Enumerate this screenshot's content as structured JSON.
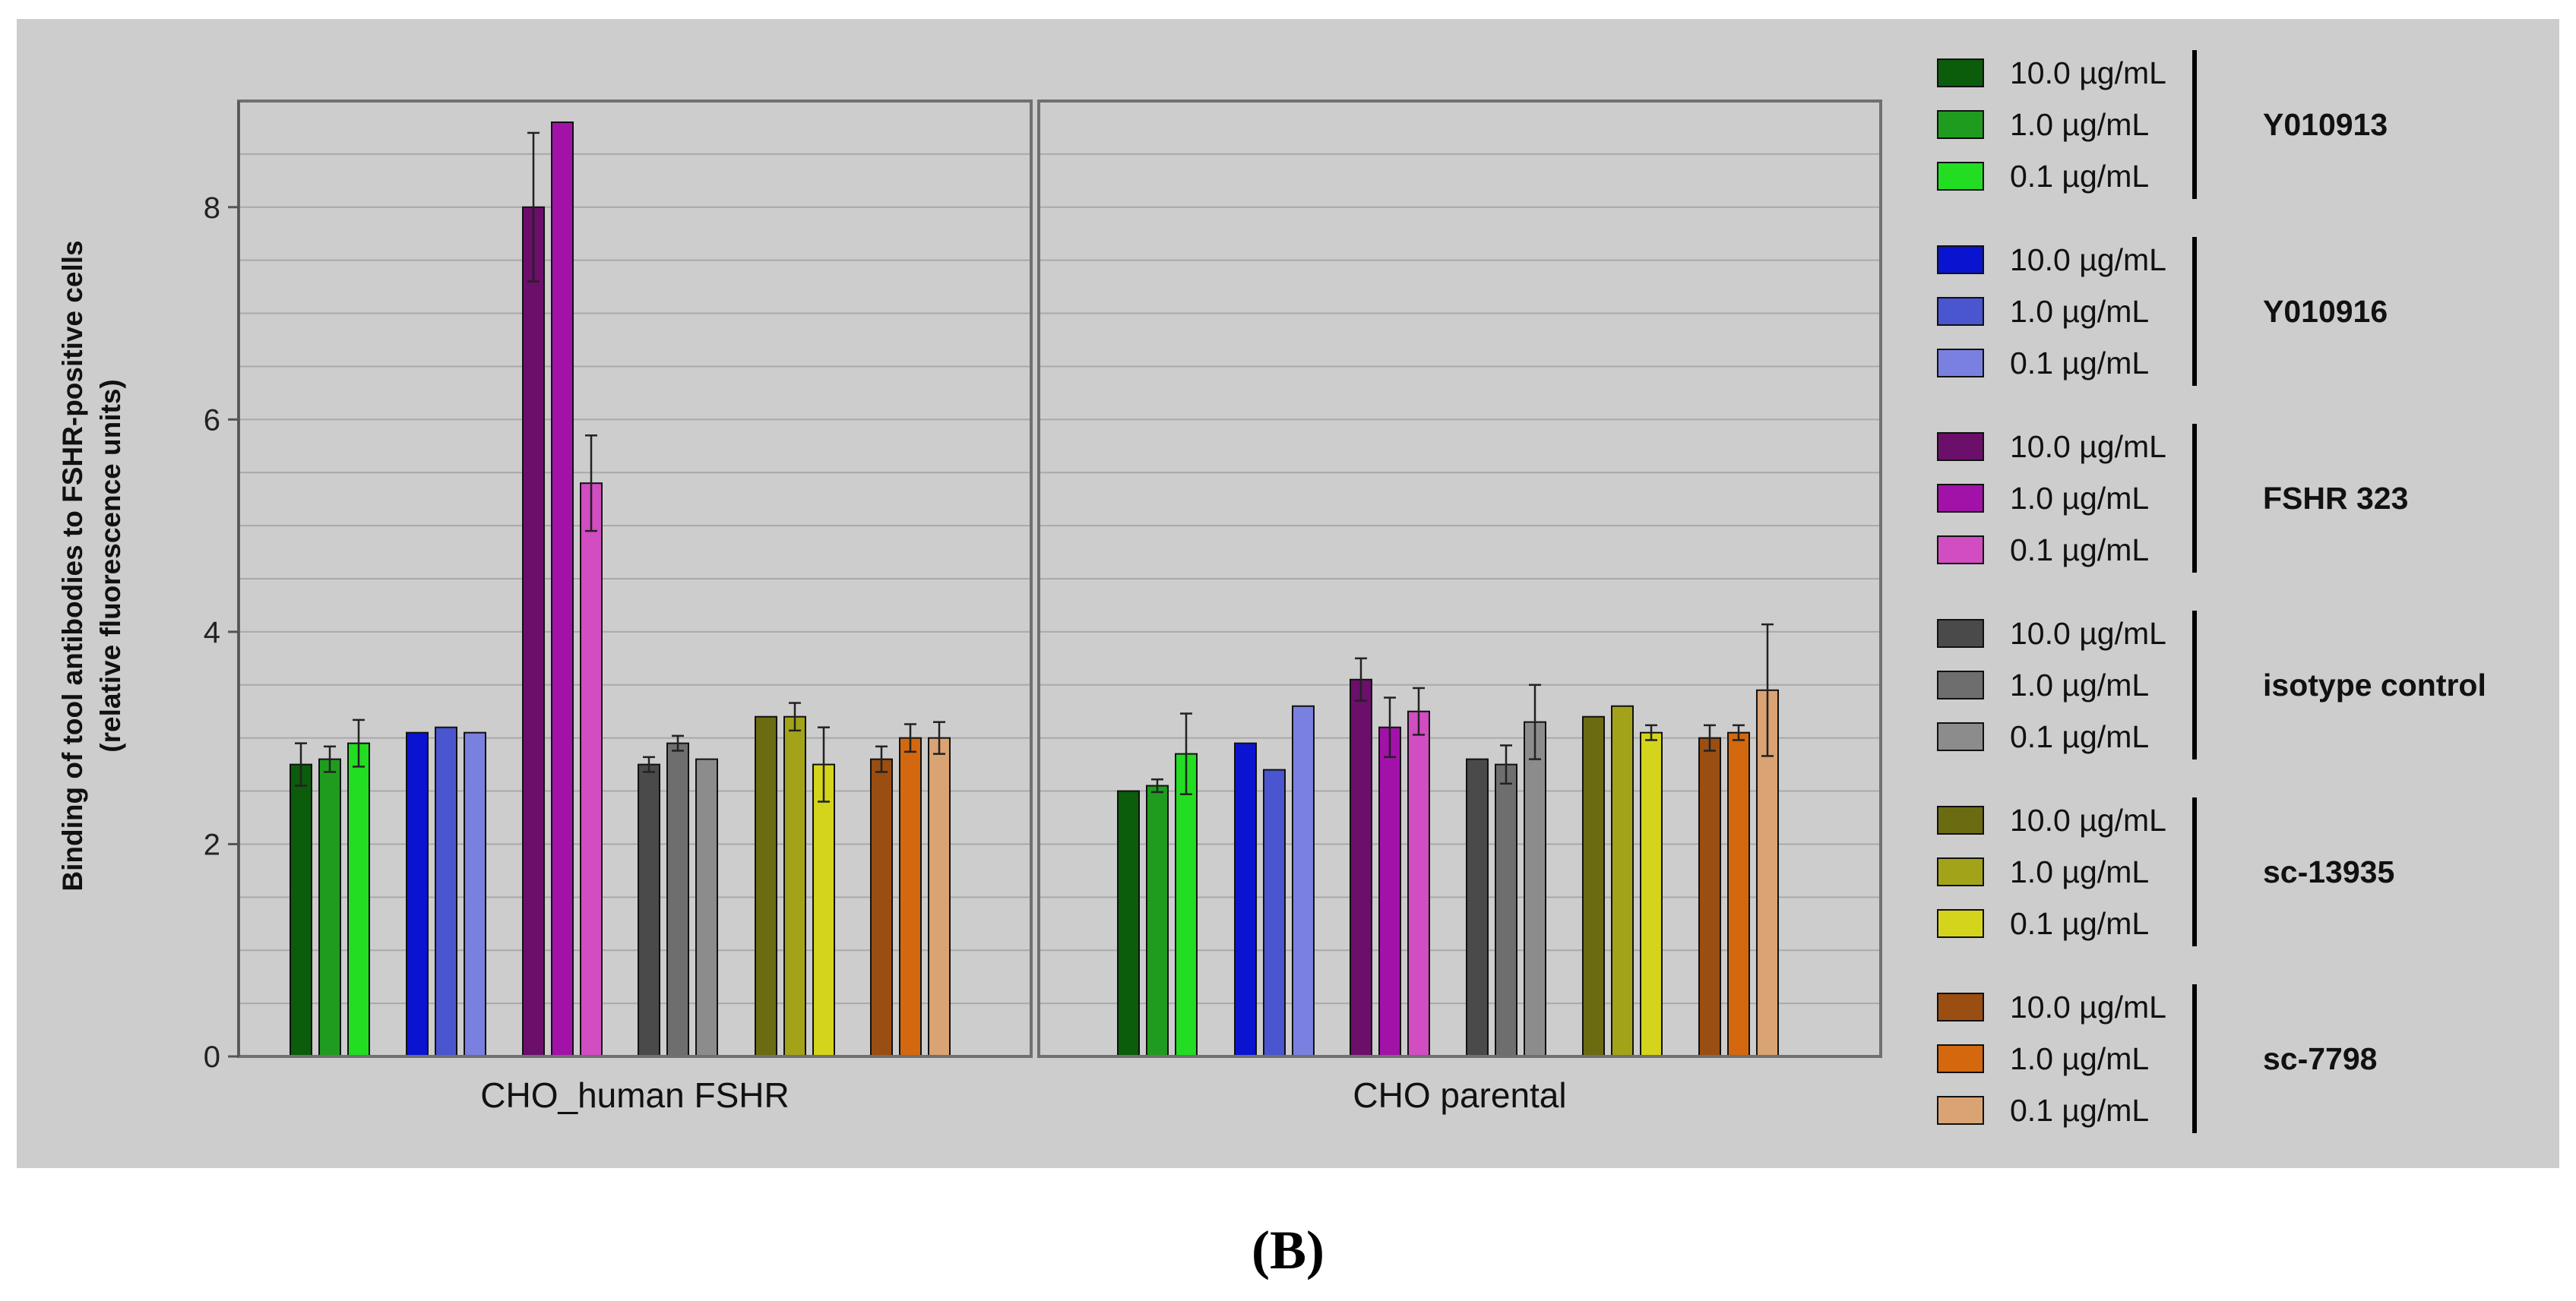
{
  "chart_data": {
    "type": "bar",
    "ylabel_line1": "Binding of tool antibodies to FSHR-positive cells",
    "ylabel_line2": "(relative fluorescence units)",
    "ylim": [
      0,
      9
    ],
    "yticks": [
      0,
      2,
      4,
      6,
      8
    ],
    "ytick_labels": [
      "0",
      "2",
      "4",
      "6",
      "8"
    ],
    "minor_grid_step": 0.5,
    "categories": [
      "CHO_human FSHR",
      "CHO parental"
    ],
    "concentration_labels": [
      "10.0 µg/mL",
      "1.0 µg/mL",
      "0.1 µg/mL"
    ],
    "groups": [
      {
        "name": "Y010913",
        "colors": [
          "#0b5c0b",
          "#1f9c1f",
          "#22dd22"
        ],
        "values": [
          [
            2.75,
            2.8,
            2.95
          ],
          [
            2.5,
            2.55,
            2.85
          ]
        ],
        "errors": [
          [
            0.2,
            0.12,
            0.22
          ],
          [
            0,
            0.06,
            0.38
          ]
        ]
      },
      {
        "name": "Y010916",
        "colors": [
          "#0a14d0",
          "#4a55d0",
          "#7a80e0"
        ],
        "values": [
          [
            3.05,
            3.1,
            3.05
          ],
          [
            2.95,
            2.7,
            3.3
          ]
        ],
        "errors": [
          [
            0,
            0,
            0
          ],
          [
            0,
            0,
            0
          ]
        ]
      },
      {
        "name": "FSHR 323",
        "colors": [
          "#6b0f6b",
          "#a212a8",
          "#d24cc2"
        ],
        "values": [
          [
            8.0,
            8.8,
            5.4
          ],
          [
            3.55,
            3.1,
            3.25
          ]
        ],
        "errors": [
          [
            0.7,
            0,
            0.45
          ],
          [
            0.2,
            0.28,
            0.22
          ]
        ]
      },
      {
        "name": "isotype control",
        "colors": [
          "#4a4a4a",
          "#6e6e6e",
          "#8c8c8c"
        ],
        "values": [
          [
            2.75,
            2.95,
            2.8
          ],
          [
            2.8,
            2.75,
            3.15
          ]
        ],
        "errors": [
          [
            0.07,
            0.07,
            0
          ],
          [
            0,
            0.18,
            0.35
          ]
        ]
      },
      {
        "name": "sc-13935",
        "colors": [
          "#6b6b12",
          "#a3a31a",
          "#d4d41c"
        ],
        "values": [
          [
            3.2,
            3.2,
            2.75
          ],
          [
            3.2,
            3.3,
            3.05
          ]
        ],
        "errors": [
          [
            0,
            0.13,
            0.35
          ],
          [
            0,
            0,
            0.07
          ]
        ]
      },
      {
        "name": "sc-7798",
        "colors": [
          "#9a4e12",
          "#d4680e",
          "#d9a374"
        ],
        "values": [
          [
            2.8,
            3.0,
            3.0
          ],
          [
            3.0,
            3.05,
            3.45
          ]
        ],
        "errors": [
          [
            0.12,
            0.13,
            0.15
          ],
          [
            0.12,
            0.07,
            0.62
          ]
        ]
      }
    ]
  },
  "panel_label": "(B)"
}
